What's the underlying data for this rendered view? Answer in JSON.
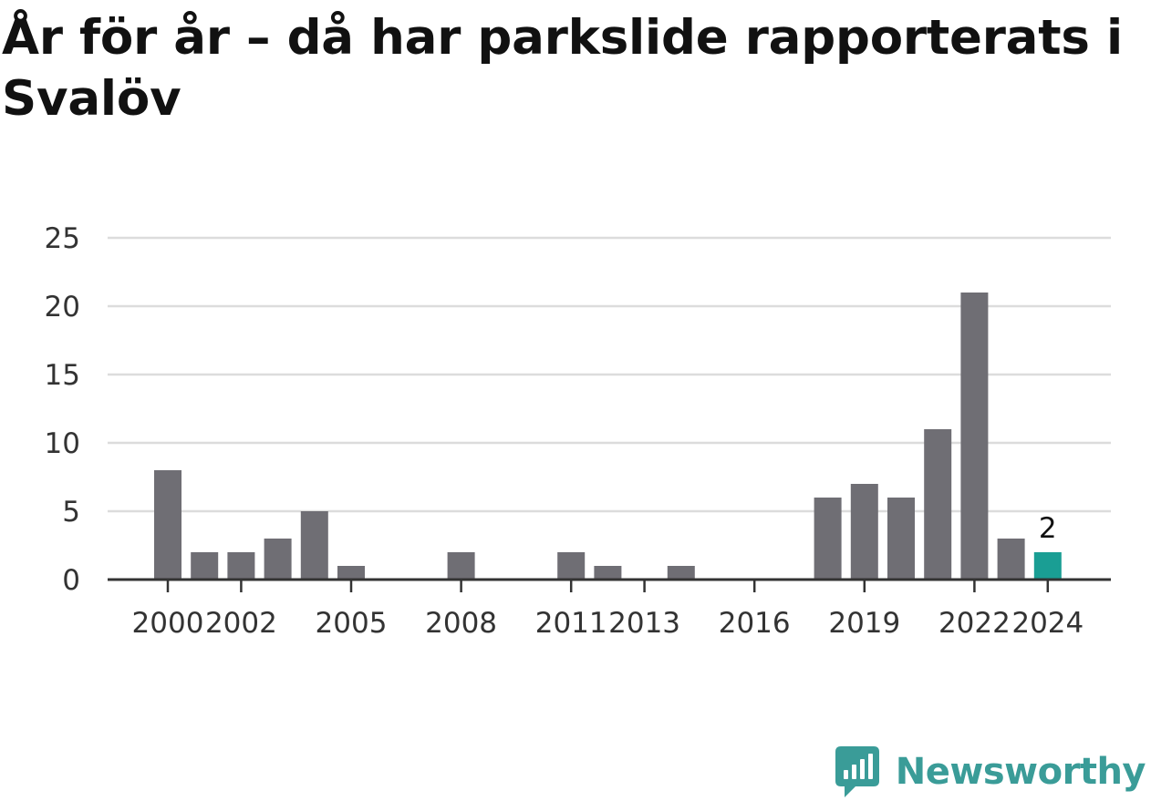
{
  "title": "År för år – då har parkslide rapporterats i Svalöv",
  "brand": {
    "name": "Newsworthy",
    "color": "#3a9c98",
    "icon": "newsworthy-logo-icon"
  },
  "chart_data": {
    "type": "bar",
    "title": "År för år – då har parkslide rapporterats i Svalöv",
    "xlabel": "",
    "ylabel": "",
    "categories": [
      "2000",
      "2001",
      "2002",
      "2003",
      "2004",
      "2005",
      "2006",
      "2007",
      "2008",
      "2009",
      "2010",
      "2011",
      "2012",
      "2013",
      "2014",
      "2015",
      "2016",
      "2017",
      "2018",
      "2019",
      "2020",
      "2021",
      "2022",
      "2023",
      "2024"
    ],
    "values": [
      8,
      2,
      2,
      3,
      5,
      1,
      0,
      0,
      2,
      0,
      0,
      2,
      1,
      0,
      1,
      0,
      0,
      0,
      6,
      7,
      6,
      11,
      21,
      3,
      2
    ],
    "x_tick_labels": [
      "2000",
      "2002",
      "2005",
      "2008",
      "2011",
      "2013",
      "2016",
      "2019",
      "2022",
      "2024"
    ],
    "y_ticks": [
      0,
      5,
      10,
      15,
      20,
      25
    ],
    "ylim": [
      0,
      25
    ],
    "grid": true,
    "legend": "none",
    "bar_color": "#6f6e74",
    "highlight": {
      "category": "2024",
      "color": "#1a9e94",
      "label": "2"
    }
  }
}
